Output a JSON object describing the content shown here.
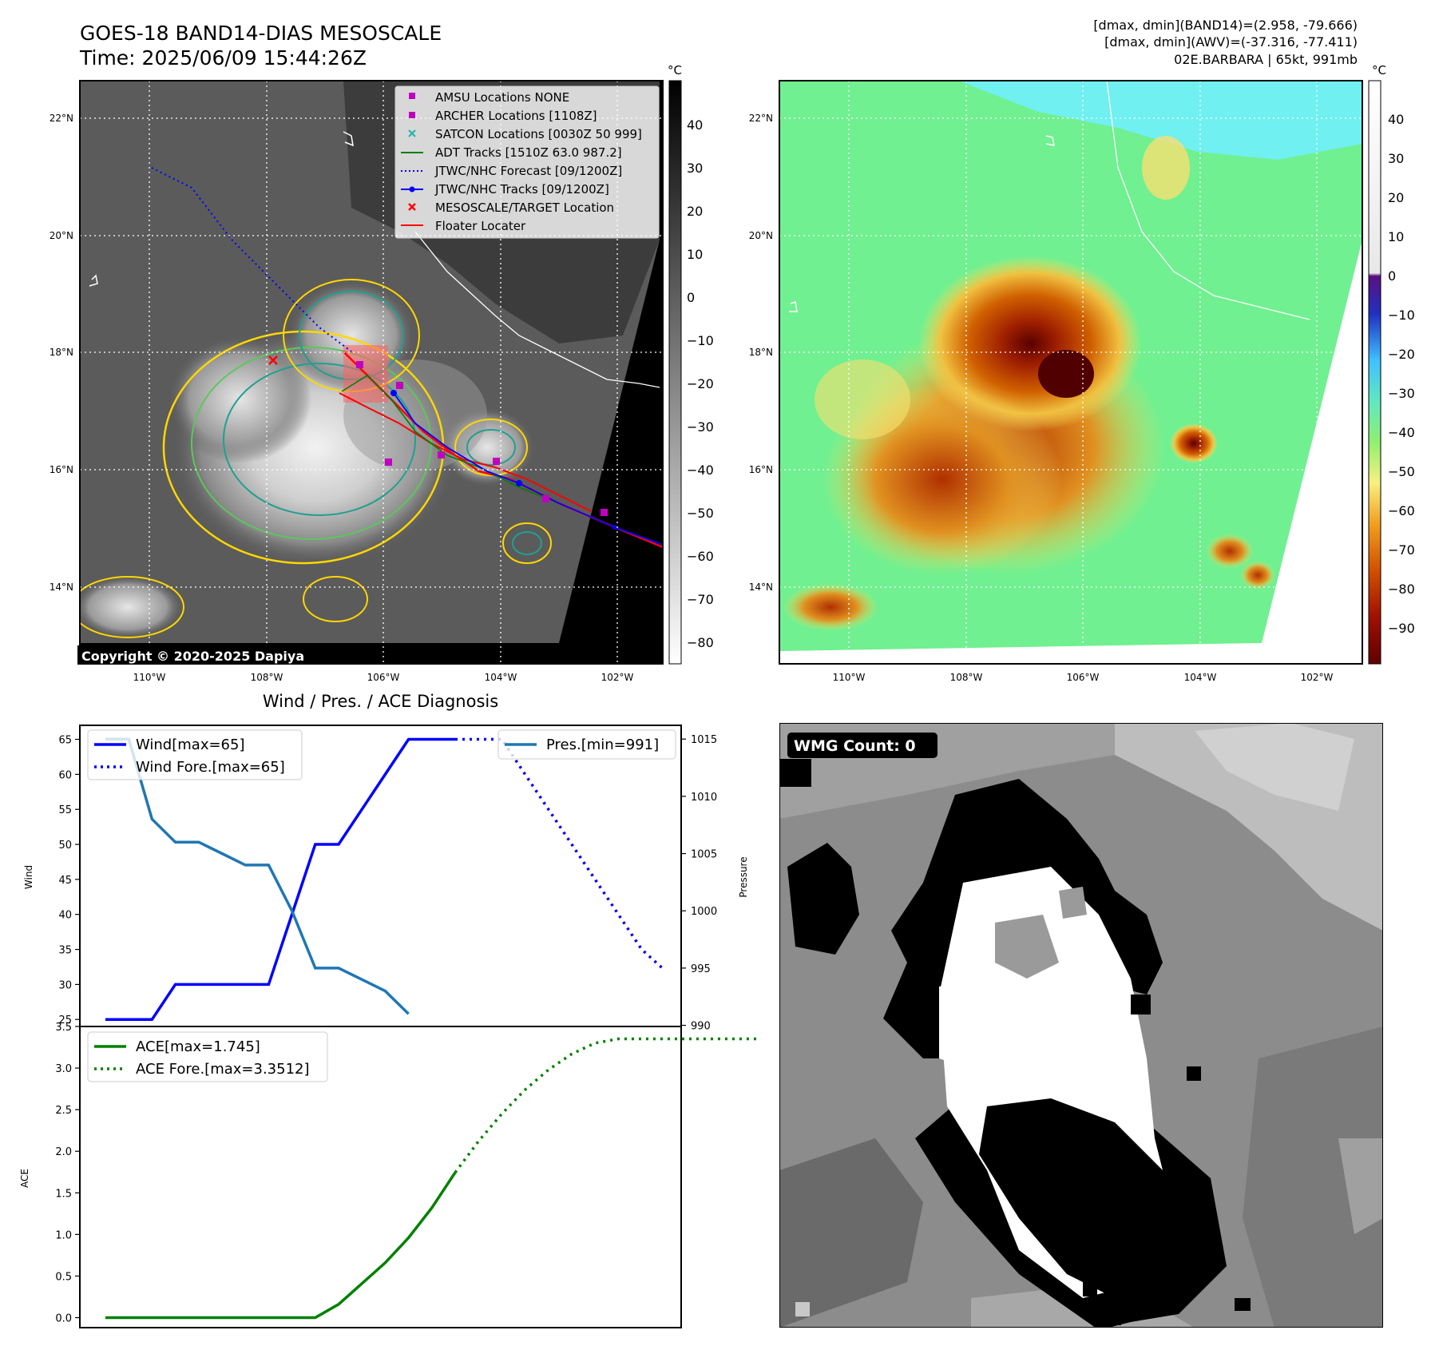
{
  "header": {
    "title_line1": "GOES-18 BAND14-DIAS MESOSCALE",
    "title_line2": "Time: 2025/06/09 15:44:26Z",
    "info_line1": "[dmax, dmin](BAND14)=(2.958, -79.666)",
    "info_line2": "[dmax, dmin](AWV)=(-37.316, -77.411)",
    "info_line3": "02E.BARBARA | 65kt, 991mb"
  },
  "map_left": {
    "lat_labels": [
      "22°N",
      "20°N",
      "18°N",
      "16°N",
      "14°N"
    ],
    "lon_labels": [
      "110°W",
      "108°W",
      "106°W",
      "104°W",
      "102°W"
    ],
    "copyright": "Copyright © 2020-2025 Dapiya",
    "colorbar_unit": "°C",
    "colorbar_ticks": [
      "40",
      "30",
      "20",
      "10",
      "0",
      "−10",
      "−20",
      "−30",
      "−40",
      "−50",
      "−60",
      "−70",
      "−80"
    ],
    "legend": [
      {
        "label": "AMSU Locations NONE",
        "color": "#c000c0",
        "marker": "square"
      },
      {
        "label": "ARCHER Locations [1108Z]",
        "color": "#c000c0",
        "marker": "square"
      },
      {
        "label": "SATCON Locations [0030Z 50 999]",
        "color": "#20b0b0",
        "marker": "x"
      },
      {
        "label": "ADT Tracks [1510Z 63.0 987.2]",
        "color": "#008000",
        "marker": "line"
      },
      {
        "label": "JTWC/NHC Forecast [09/1200Z]",
        "color": "#0000ff",
        "marker": "dotted"
      },
      {
        "label": "JTWC/NHC Tracks [09/1200Z]",
        "color": "#0000ff",
        "marker": "line-dot"
      },
      {
        "label": "MESOSCALE/TARGET Location",
        "color": "#ff0000",
        "marker": "x"
      },
      {
        "label": "Floater Locater",
        "color": "#ff0000",
        "marker": "line"
      }
    ]
  },
  "map_right": {
    "lat_labels": [
      "22°N",
      "20°N",
      "18°N",
      "16°N",
      "14°N"
    ],
    "lon_labels": [
      "110°W",
      "108°W",
      "106°W",
      "104°W",
      "102°W"
    ],
    "colorbar_unit": "°C",
    "colorbar_ticks": [
      "40",
      "30",
      "20",
      "10",
      "0",
      "−10",
      "−20",
      "−30",
      "−40",
      "−50",
      "−60",
      "−70",
      "−80",
      "−90"
    ]
  },
  "wind_chart": {
    "title": "Wind / Pres. / ACE Diagnosis",
    "ylabel_left": "Wind",
    "ylabel_right": "Pressure",
    "left_ticks": [
      "65",
      "60",
      "55",
      "50",
      "45",
      "40",
      "35",
      "30",
      "25"
    ],
    "right_ticks": [
      "1015",
      "1010",
      "1005",
      "1000",
      "995",
      "990"
    ],
    "legend_wind": "Wind[max=65]",
    "legend_wind_fore": "Wind Fore.[max=65]",
    "legend_pres": "Pres.[min=991]"
  },
  "ace_chart": {
    "ylabel": "ACE",
    "ticks": [
      "3.5",
      "3.0",
      "2.5",
      "2.0",
      "1.5",
      "1.0",
      "0.5",
      "0.0"
    ],
    "legend_ace": "ACE[max=1.745]",
    "legend_ace_fore": "ACE Fore.[max=3.3512]"
  },
  "wmg": {
    "label": "WMG Count: 0"
  },
  "chart_data": [
    {
      "type": "line",
      "title": "Wind / Pres. / ACE Diagnosis",
      "ylabel": "Wind",
      "y2label": "Pressure",
      "ylim": [
        24,
        67
      ],
      "y2lim": [
        989.9,
        1016.2
      ],
      "series": [
        {
          "name": "Wind[max=65]",
          "axis": "left",
          "style": "solid",
          "color": "#0000ff",
          "x": [
            0,
            1,
            2,
            3,
            4,
            5,
            6,
            7,
            8,
            9,
            10,
            11,
            12,
            13,
            14,
            15
          ],
          "y": [
            25,
            25,
            25,
            30,
            30,
            30,
            30,
            30,
            40,
            50,
            50,
            55,
            60,
            65,
            65,
            65
          ]
        },
        {
          "name": "Wind Fore.[max=65]",
          "axis": "left",
          "style": "dotted",
          "color": "#0000ff",
          "x": [
            15,
            16,
            17,
            18,
            19,
            20,
            21,
            22,
            23,
            24
          ],
          "y": [
            65,
            65,
            65,
            60,
            55,
            50,
            45,
            40,
            35,
            32
          ]
        },
        {
          "name": "Pres.[min=991]",
          "axis": "right",
          "style": "solid",
          "color": "#1f77b4",
          "x": [
            0,
            1,
            2,
            3,
            4,
            5,
            6,
            7,
            8,
            9,
            10,
            11,
            12,
            13
          ],
          "y": [
            1015,
            1015,
            1008,
            1006,
            1006,
            1005,
            1004,
            1004,
            1000,
            995,
            995,
            994,
            993,
            991
          ]
        }
      ]
    },
    {
      "type": "line",
      "ylabel": "ACE",
      "ylim": [
        -0.12,
        3.5
      ],
      "series": [
        {
          "name": "ACE[max=1.745]",
          "style": "solid",
          "color": "#008000",
          "x": [
            0,
            1,
            2,
            3,
            4,
            5,
            6,
            7,
            8,
            9,
            10,
            11,
            12,
            13,
            14,
            15
          ],
          "y": [
            0,
            0,
            0,
            0,
            0,
            0,
            0,
            0,
            0,
            0,
            0.16,
            0.41,
            0.66,
            0.96,
            1.32,
            1.745
          ]
        },
        {
          "name": "ACE Fore.[max=3.3512]",
          "style": "dotted",
          "color": "#008000",
          "x": [
            15,
            16,
            17,
            18,
            19,
            20,
            21,
            22,
            23,
            24,
            25,
            26,
            27,
            28
          ],
          "y": [
            1.745,
            2.12,
            2.45,
            2.74,
            2.98,
            3.17,
            3.3,
            3.3512,
            3.3512,
            3.3512,
            3.3512,
            3.3512,
            3.3512,
            3.3512
          ]
        }
      ]
    }
  ]
}
